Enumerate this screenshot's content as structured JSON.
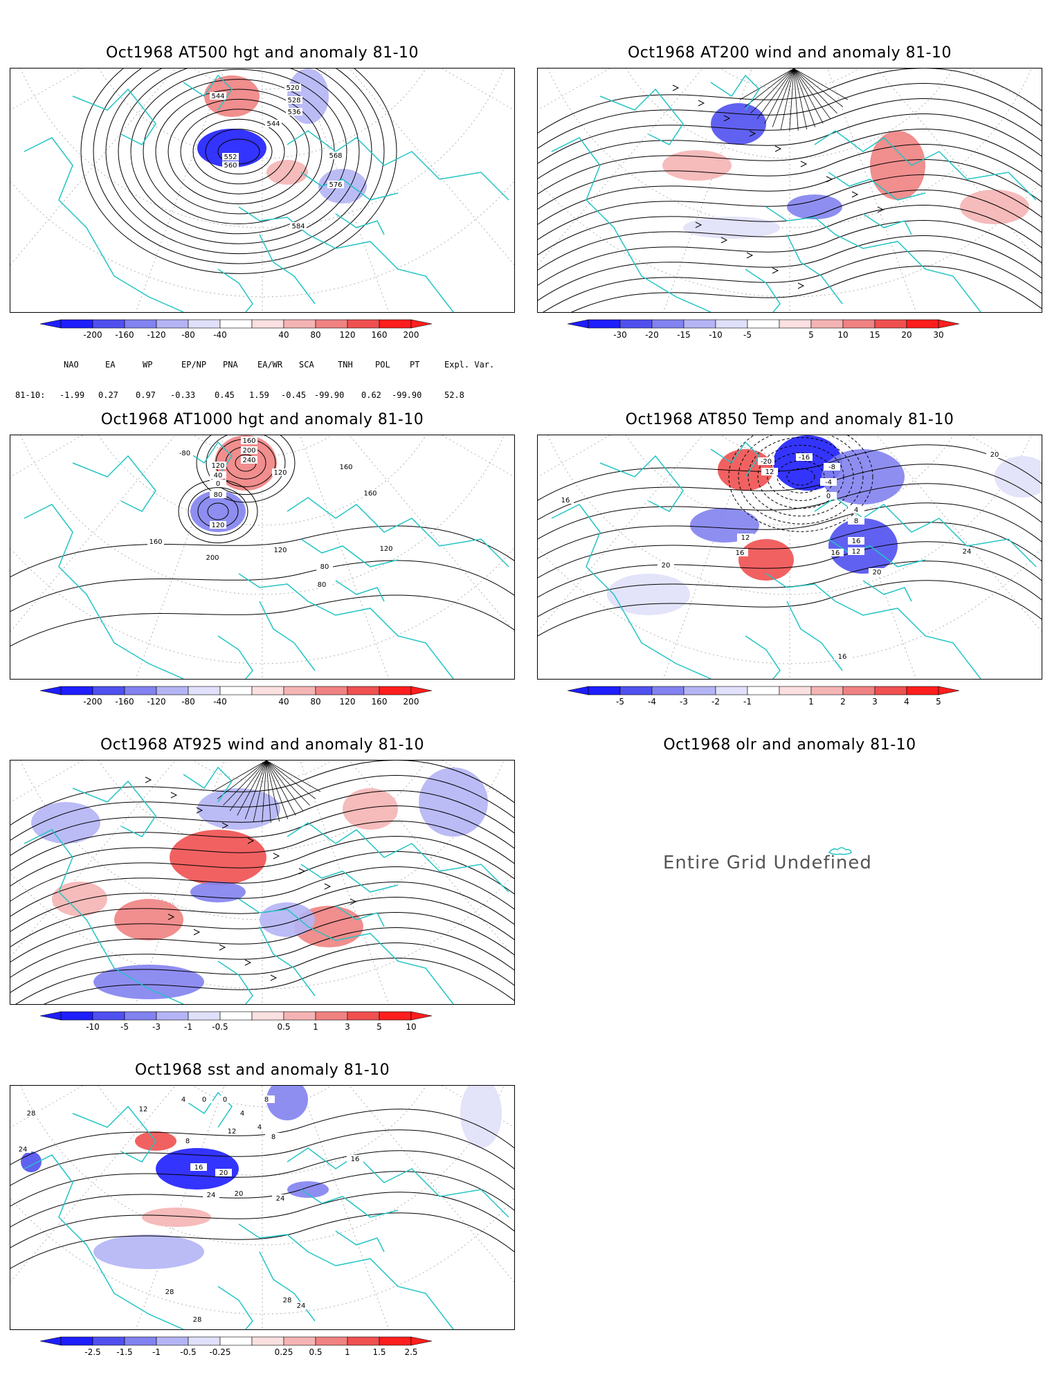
{
  "panels": [
    {
      "title": "Oct1968 AT500 hgt and anomaly 81-10",
      "colorbar": [
        "-200",
        "-160",
        "-120",
        "-80",
        "-40",
        "40",
        "80",
        "120",
        "160",
        "200"
      ],
      "contour_labels": [
        "544",
        "520",
        "528",
        "536",
        "544",
        "552",
        "560",
        "568",
        "576",
        "584"
      ]
    },
    {
      "title": "Oct1968 AT200 wind and anomaly 81-10",
      "colorbar": [
        "-30",
        "-20",
        "-15",
        "-10",
        "-5",
        "5",
        "10",
        "15",
        "20",
        "30"
      ],
      "contour_labels": []
    },
    {
      "title": "Oct1968 AT1000 hgt and anomaly 81-10",
      "colorbar": [
        "-200",
        "-160",
        "-120",
        "-80",
        "-40",
        "40",
        "80",
        "120",
        "160",
        "200"
      ],
      "contour_labels": [
        "-80",
        "160",
        "200",
        "240",
        "120",
        "40",
        "0",
        "80",
        "120",
        "160",
        "200",
        "120",
        "160",
        "160",
        "120",
        "80",
        "80",
        "120"
      ]
    },
    {
      "title": "Oct1968 AT850 Temp and anomaly 81-10",
      "colorbar": [
        "-5",
        "-4",
        "-3",
        "-2",
        "-1",
        "1",
        "2",
        "3",
        "4",
        "5"
      ],
      "contour_labels": [
        "-20",
        "-16",
        "-8",
        "12",
        "-4",
        "0",
        "4",
        "8",
        "12",
        "16",
        "12",
        "16",
        "16",
        "20",
        "20",
        "24",
        "16",
        "20",
        "16"
      ]
    },
    {
      "title": "Oct1968 AT925 wind and anomaly 81-10",
      "colorbar": [
        "-10",
        "-5",
        "-3",
        "-1",
        "-0.5",
        "0.5",
        "1",
        "3",
        "5",
        "10"
      ],
      "contour_labels": []
    },
    {
      "title": "Oct1968 olr and anomaly 81-10",
      "undefined_text": "Entire Grid Undefined"
    },
    {
      "title": "Oct1968 sst and anomaly 81-10",
      "colorbar": [
        "-2.5",
        "-1.5",
        "-1",
        "-0.5",
        "-0.25",
        "0.25",
        "0.5",
        "1",
        "1.5",
        "2.5"
      ],
      "contour_labels": [
        "28",
        "24",
        "12",
        "4",
        "0",
        "0",
        "4",
        "8",
        "4",
        "8",
        "8",
        "12",
        "16",
        "20",
        "24",
        "20",
        "24",
        "28",
        "28",
        "28",
        "24",
        "16"
      ]
    }
  ],
  "indices": {
    "header": [
      "NAO",
      "EA",
      "WP",
      "EP/NP",
      "PNA",
      "EA/WR",
      "SCA",
      "TNH",
      "POL",
      "PT",
      "Expl. Var."
    ],
    "row_label": "81-10:",
    "values": [
      "-1.99",
      "0.27",
      "0.97",
      "-0.33",
      "0.45",
      "1.59",
      "-0.45",
      "-99.90",
      "0.62",
      "-99.90",
      "52.8"
    ]
  },
  "colors": {
    "coast": "#22c4c4",
    "grid": "#b0b0b0",
    "neg": [
      "#1e1eff",
      "#5050f0",
      "#8282f0",
      "#b4b4f5",
      "#e0e0fa"
    ],
    "pos": [
      "#fae0e0",
      "#f5b4b4",
      "#f08282",
      "#f05050",
      "#ff1e1e"
    ]
  }
}
